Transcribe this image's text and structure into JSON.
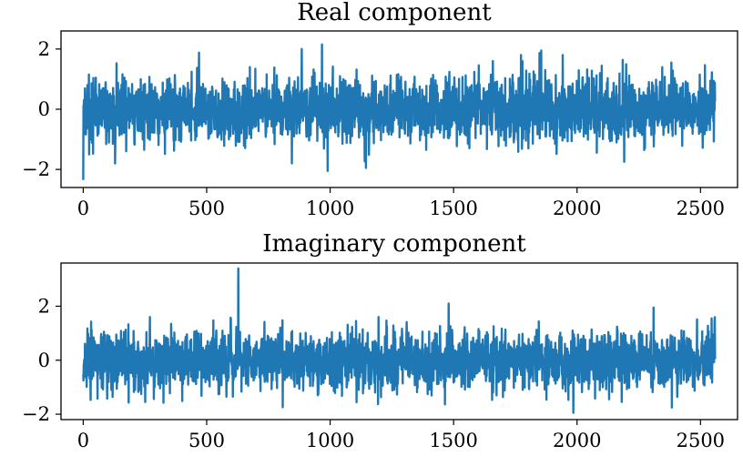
{
  "colors": {
    "line": "#1f77b4",
    "axes": "#000000",
    "background": "#ffffff"
  },
  "chart_data": [
    {
      "type": "line",
      "title": "Real component",
      "xlabel": "",
      "ylabel": "",
      "xlim": [
        -90,
        2650
      ],
      "ylim": [
        -2.6,
        2.6
      ],
      "xticks": [
        0,
        500,
        1000,
        1500,
        2000,
        2500
      ],
      "xtick_labels": [
        "0",
        "500",
        "1000",
        "1500",
        "2000",
        "2500"
      ],
      "yticks": [
        -2,
        0,
        2
      ],
      "ytick_labels": [
        "−2",
        "0",
        "2"
      ],
      "grid": false,
      "legend": "none",
      "n_points": 2560,
      "x_range": [
        0,
        2559
      ],
      "value_range": [
        -2.35,
        2.15
      ],
      "noise_std": 0.55,
      "notable_points": [
        {
          "x": 0,
          "y": -2.35
        },
        {
          "x": 967,
          "y": 2.15
        },
        {
          "x": 990,
          "y": -2.05
        },
        {
          "x": 885,
          "y": 2.0
        },
        {
          "x": 1855,
          "y": 1.95
        },
        {
          "x": 1773,
          "y": 1.8
        },
        {
          "x": 1145,
          "y": -1.95
        }
      ]
    },
    {
      "type": "line",
      "title": "Imaginary component",
      "xlabel": "",
      "ylabel": "",
      "xlim": [
        -90,
        2650
      ],
      "ylim": [
        -2.2,
        3.6
      ],
      "xticks": [
        0,
        500,
        1000,
        1500,
        2000,
        2500
      ],
      "xtick_labels": [
        "0",
        "500",
        "1000",
        "1500",
        "2000",
        "2500"
      ],
      "yticks": [
        -2,
        0,
        2
      ],
      "ytick_labels": [
        "−2",
        "0",
        "2"
      ],
      "grid": false,
      "legend": "none",
      "n_points": 2560,
      "x_range": [
        0,
        2559
      ],
      "value_range": [
        -1.95,
        3.4
      ],
      "noise_std": 0.55,
      "notable_points": [
        {
          "x": 628,
          "y": 3.4
        },
        {
          "x": 1480,
          "y": 2.1
        },
        {
          "x": 1985,
          "y": -1.95
        },
        {
          "x": 2310,
          "y": 1.95
        },
        {
          "x": 2545,
          "y": 1.55
        }
      ]
    }
  ]
}
